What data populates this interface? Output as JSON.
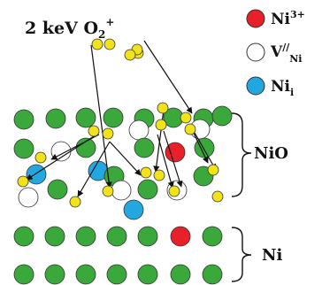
{
  "title": {
    "prefix": "2 keV O",
    "sub": "2",
    "sup": "+"
  },
  "legend": [
    {
      "key": "ni3",
      "color": "#e8202a",
      "text_main": "Ni",
      "text_sup": "3+",
      "text_sub": ""
    },
    {
      "key": "vac",
      "color": "#ffffff",
      "text_main": "V",
      "text_sup": "//",
      "text_sub": "Ni"
    },
    {
      "key": "nii",
      "color": "#22a7e0",
      "text_main": "Ni",
      "text_sup": "",
      "text_sub": "i"
    }
  ],
  "regions": [
    {
      "key": "nio",
      "label": "NiO"
    },
    {
      "key": "ni",
      "label": "Ni"
    }
  ],
  "colors": {
    "lattice": "#3aa83a",
    "oxygen": "#f2e21a",
    "ni3": "#e8202a",
    "interstitial": "#22a7e0",
    "vacancy": "#ffffff",
    "outline": "#333333"
  }
}
